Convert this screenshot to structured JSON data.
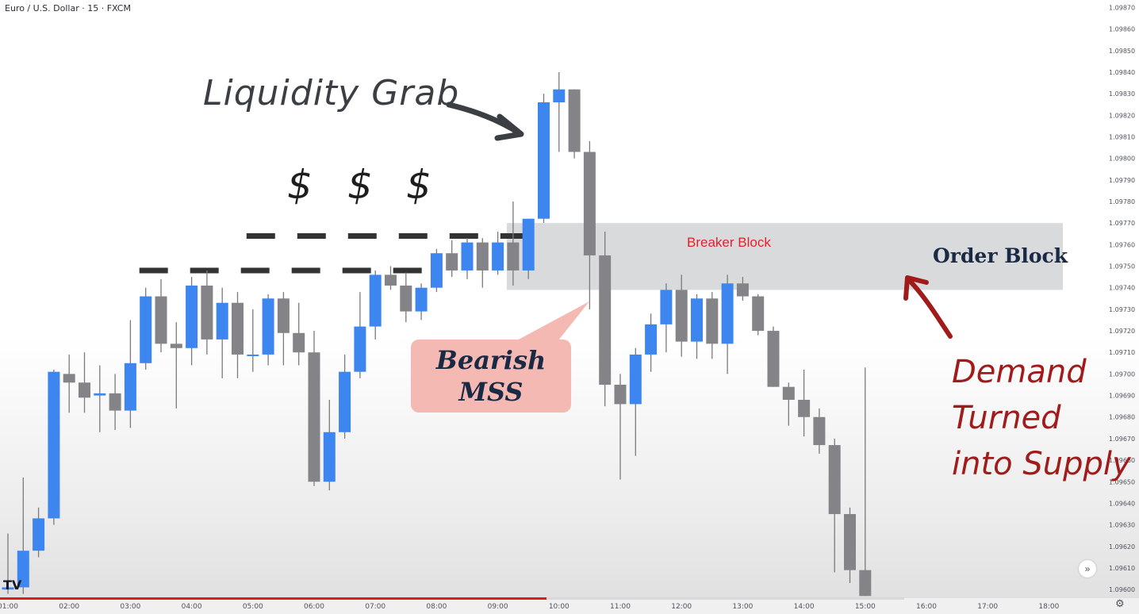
{
  "header": {
    "symbol_title": "Euro / U.S. Dollar · 15 · FXCM"
  },
  "annotations": {
    "liquidity_grab": "Liquidity Grab",
    "dollar_signs": [
      "$",
      "$",
      "$"
    ],
    "breaker_block": "Breaker Block",
    "order_block": "Order Block",
    "bearish_mss_line1": "Bearish",
    "bearish_mss_line2": "MSS",
    "demand_lines": [
      "Demand",
      "Turned",
      "into Supply"
    ]
  },
  "colors": {
    "bull": "#3d86ef",
    "bear": "#848488",
    "wick": "#7a7a7a",
    "zone": "#d1d4d5",
    "liquidity_dash": "#333333",
    "progress_red": "#e01a1a",
    "arrow_dark": "#3b3f44",
    "arrow_red": "#a21b1b",
    "mss_box": "#f4b9b3"
  },
  "icons": {
    "logo": "tradingview-logo-icon",
    "nav": "chevron-right-icon",
    "settings": "gear-icon"
  },
  "logo_text": "TV",
  "nav_glyph": "»",
  "gear_glyph": "⚙",
  "chart_data": {
    "type": "candlestick",
    "title": "Euro / U.S. Dollar · 15 · FXCM",
    "ylim": [
      1.09596,
      1.09872
    ],
    "y_ticks": [
      1.096,
      1.0961,
      1.0962,
      1.0963,
      1.0964,
      1.0965,
      1.0966,
      1.0967,
      1.0968,
      1.0969,
      1.097,
      1.0971,
      1.0972,
      1.0973,
      1.0974,
      1.0975,
      1.0976,
      1.0977,
      1.0978,
      1.0979,
      1.098,
      1.0981,
      1.0982,
      1.0983,
      1.0984,
      1.0985,
      1.0986,
      1.0987
    ],
    "x_ticks": [
      "01:00",
      "02:00",
      "03:00",
      "04:00",
      "05:00",
      "06:00",
      "07:00",
      "08:00",
      "09:00",
      "10:00",
      "11:00",
      "12:00",
      "13:00",
      "14:00",
      "15:00",
      "16:00",
      "17:00",
      "18:00"
    ],
    "x_tick_slots": [
      0,
      4,
      8,
      12,
      16,
      20,
      24,
      28,
      32,
      36,
      40,
      44,
      48,
      52,
      56,
      60,
      64,
      68
    ],
    "candles": [
      {
        "time": "01:00",
        "o": 1.096,
        "h": 1.09626,
        "l": 1.09598,
        "c": 1.09601
      },
      {
        "time": "01:15",
        "o": 1.09601,
        "h": 1.09652,
        "l": 1.09598,
        "c": 1.09618
      },
      {
        "time": "01:30",
        "o": 1.09618,
        "h": 1.09638,
        "l": 1.09615,
        "c": 1.09633
      },
      {
        "time": "01:45",
        "o": 1.09633,
        "h": 1.09702,
        "l": 1.0963,
        "c": 1.09701
      },
      {
        "time": "02:00",
        "o": 1.097,
        "h": 1.09709,
        "l": 1.09682,
        "c": 1.09696
      },
      {
        "time": "02:15",
        "o": 1.09696,
        "h": 1.0971,
        "l": 1.09682,
        "c": 1.09689
      },
      {
        "time": "02:30",
        "o": 1.0969,
        "h": 1.09704,
        "l": 1.09673,
        "c": 1.09691
      },
      {
        "time": "02:45",
        "o": 1.09691,
        "h": 1.097,
        "l": 1.09674,
        "c": 1.09683
      },
      {
        "time": "03:00",
        "o": 1.09683,
        "h": 1.09725,
        "l": 1.09675,
        "c": 1.09705
      },
      {
        "time": "03:15",
        "o": 1.09705,
        "h": 1.0974,
        "l": 1.09702,
        "c": 1.09736
      },
      {
        "time": "03:30",
        "o": 1.09736,
        "h": 1.09744,
        "l": 1.0971,
        "c": 1.09714
      },
      {
        "time": "03:45",
        "o": 1.09714,
        "h": 1.09724,
        "l": 1.09684,
        "c": 1.09712
      },
      {
        "time": "04:00",
        "o": 1.09712,
        "h": 1.09745,
        "l": 1.09704,
        "c": 1.09741
      },
      {
        "time": "04:15",
        "o": 1.09741,
        "h": 1.09748,
        "l": 1.09709,
        "c": 1.09716
      },
      {
        "time": "04:30",
        "o": 1.09716,
        "h": 1.0974,
        "l": 1.09698,
        "c": 1.09733
      },
      {
        "time": "04:45",
        "o": 1.09733,
        "h": 1.09738,
        "l": 1.09698,
        "c": 1.09709
      },
      {
        "time": "05:00",
        "o": 1.09709,
        "h": 1.0973,
        "l": 1.09701,
        "c": 1.09709
      },
      {
        "time": "05:15",
        "o": 1.09709,
        "h": 1.09737,
        "l": 1.09704,
        "c": 1.09735
      },
      {
        "time": "05:30",
        "o": 1.09735,
        "h": 1.09738,
        "l": 1.09704,
        "c": 1.09719
      },
      {
        "time": "05:45",
        "o": 1.09719,
        "h": 1.09733,
        "l": 1.09704,
        "c": 1.0971
      },
      {
        "time": "06:00",
        "o": 1.0971,
        "h": 1.0972,
        "l": 1.09648,
        "c": 1.0965
      },
      {
        "time": "06:15",
        "o": 1.0965,
        "h": 1.09688,
        "l": 1.09646,
        "c": 1.09673
      },
      {
        "time": "06:30",
        "o": 1.09673,
        "h": 1.09709,
        "l": 1.0967,
        "c": 1.09701
      },
      {
        "time": "06:45",
        "o": 1.09701,
        "h": 1.09738,
        "l": 1.09698,
        "c": 1.09722
      },
      {
        "time": "07:00",
        "o": 1.09722,
        "h": 1.09748,
        "l": 1.09716,
        "c": 1.09746
      },
      {
        "time": "07:15",
        "o": 1.09746,
        "h": 1.0975,
        "l": 1.09739,
        "c": 1.09741
      },
      {
        "time": "07:30",
        "o": 1.09741,
        "h": 1.09747,
        "l": 1.09724,
        "c": 1.09729
      },
      {
        "time": "07:45",
        "o": 1.09729,
        "h": 1.09742,
        "l": 1.09725,
        "c": 1.0974
      },
      {
        "time": "08:00",
        "o": 1.0974,
        "h": 1.09758,
        "l": 1.09738,
        "c": 1.09756
      },
      {
        "time": "08:15",
        "o": 1.09756,
        "h": 1.09762,
        "l": 1.09745,
        "c": 1.09748
      },
      {
        "time": "08:30",
        "o": 1.09748,
        "h": 1.09763,
        "l": 1.09744,
        "c": 1.09761
      },
      {
        "time": "08:45",
        "o": 1.09761,
        "h": 1.09763,
        "l": 1.0974,
        "c": 1.09748
      },
      {
        "time": "09:00",
        "o": 1.09748,
        "h": 1.09766,
        "l": 1.09746,
        "c": 1.09761
      },
      {
        "time": "09:15",
        "o": 1.09761,
        "h": 1.0978,
        "l": 1.09741,
        "c": 1.09748
      },
      {
        "time": "09:30",
        "o": 1.09748,
        "h": 1.09772,
        "l": 1.09744,
        "c": 1.09772
      },
      {
        "time": "09:45",
        "o": 1.09772,
        "h": 1.0983,
        "l": 1.0977,
        "c": 1.09826
      },
      {
        "time": "10:00",
        "o": 1.09826,
        "h": 1.0984,
        "l": 1.09803,
        "c": 1.09832
      },
      {
        "time": "10:15",
        "o": 1.09832,
        "h": 1.09832,
        "l": 1.098,
        "c": 1.09803
      },
      {
        "time": "10:30",
        "o": 1.09803,
        "h": 1.09808,
        "l": 1.0973,
        "c": 1.09755
      },
      {
        "time": "10:45",
        "o": 1.09755,
        "h": 1.09766,
        "l": 1.09685,
        "c": 1.09695
      },
      {
        "time": "11:00",
        "o": 1.09695,
        "h": 1.097,
        "l": 1.09651,
        "c": 1.09686
      },
      {
        "time": "11:15",
        "o": 1.09686,
        "h": 1.09712,
        "l": 1.09662,
        "c": 1.09709
      },
      {
        "time": "11:30",
        "o": 1.09709,
        "h": 1.09728,
        "l": 1.09701,
        "c": 1.09723
      },
      {
        "time": "11:45",
        "o": 1.09723,
        "h": 1.09742,
        "l": 1.0971,
        "c": 1.09739
      },
      {
        "time": "12:00",
        "o": 1.09739,
        "h": 1.09746,
        "l": 1.09708,
        "c": 1.09715
      },
      {
        "time": "12:15",
        "o": 1.09715,
        "h": 1.09737,
        "l": 1.09707,
        "c": 1.09735
      },
      {
        "time": "12:30",
        "o": 1.09735,
        "h": 1.09738,
        "l": 1.09707,
        "c": 1.09714
      },
      {
        "time": "12:45",
        "o": 1.09714,
        "h": 1.09746,
        "l": 1.097,
        "c": 1.09742
      },
      {
        "time": "13:00",
        "o": 1.09742,
        "h": 1.09745,
        "l": 1.09734,
        "c": 1.09736
      },
      {
        "time": "13:15",
        "o": 1.09736,
        "h": 1.09737,
        "l": 1.09718,
        "c": 1.0972
      },
      {
        "time": "13:30",
        "o": 1.0972,
        "h": 1.09722,
        "l": 1.09694,
        "c": 1.09694
      },
      {
        "time": "13:45",
        "o": 1.09694,
        "h": 1.09696,
        "l": 1.09676,
        "c": 1.09688
      },
      {
        "time": "14:00",
        "o": 1.09688,
        "h": 1.09702,
        "l": 1.09671,
        "c": 1.0968
      },
      {
        "time": "14:15",
        "o": 1.0968,
        "h": 1.09684,
        "l": 1.09663,
        "c": 1.09667
      },
      {
        "time": "14:30",
        "o": 1.09667,
        "h": 1.0967,
        "l": 1.09608,
        "c": 1.09635
      },
      {
        "time": "14:45",
        "o": 1.09635,
        "h": 1.09638,
        "l": 1.09603,
        "c": 1.09609
      },
      {
        "time": "15:00",
        "o": 1.09609,
        "h": 1.09703,
        "l": 1.09597,
        "c": 1.09597
      }
    ],
    "order_block_zone": {
      "from_time": "09:15",
      "low": 1.09739,
      "high": 1.0977
    },
    "liquidity_levels": [
      {
        "price": 1.09748,
        "from_time": "03:15",
        "to_time": "07:45"
      },
      {
        "price": 1.09764,
        "from_time": "05:00",
        "to_time": "09:30"
      }
    ],
    "grid": false
  }
}
